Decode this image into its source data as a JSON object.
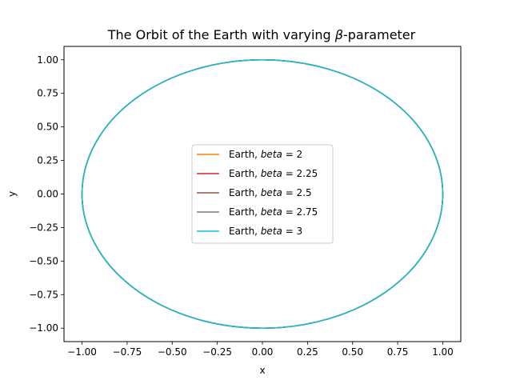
{
  "chart_data": {
    "type": "line",
    "title_prefix": "The Orbit of the Earth with varying ",
    "title_symbol": "β",
    "title_suffix": "-parameter",
    "xlabel": "x",
    "ylabel": "y",
    "xlim": [
      -1.1,
      1.1
    ],
    "ylim": [
      -1.1,
      1.1
    ],
    "xticks": [
      -1.0,
      -0.75,
      -0.5,
      -0.25,
      0.0,
      0.25,
      0.5,
      0.75,
      1.0
    ],
    "yticks": [
      -1.0,
      -0.75,
      -0.5,
      -0.25,
      0.0,
      0.25,
      0.5,
      0.75,
      1.0
    ],
    "xtick_labels": [
      "−1.00",
      "−0.75",
      "−0.50",
      "−0.25",
      "0.00",
      "0.25",
      "0.50",
      "0.75",
      "1.00"
    ],
    "ytick_labels": [
      "−1.00",
      "−0.75",
      "−0.50",
      "−0.25",
      "0.00",
      "0.25",
      "0.50",
      "0.75",
      "1.00"
    ],
    "grid": false,
    "legend_position": "center",
    "orbit": {
      "center": [
        0.0,
        0.0
      ],
      "radius": 1.0
    },
    "series": [
      {
        "label_prefix": "Earth, ",
        "label_math": "beta",
        "label_value": "2",
        "color": "#ff7f0e"
      },
      {
        "label_prefix": "Earth, ",
        "label_math": "beta",
        "label_value": "2.25",
        "color": "#d62728"
      },
      {
        "label_prefix": "Earth, ",
        "label_math": "beta",
        "label_value": "2.5",
        "color": "#8c564b"
      },
      {
        "label_prefix": "Earth, ",
        "label_math": "beta",
        "label_value": "2.75",
        "color": "#7f7f7f"
      },
      {
        "label_prefix": "Earth, ",
        "label_math": "beta",
        "label_value": "3",
        "color": "#17becf"
      }
    ]
  }
}
